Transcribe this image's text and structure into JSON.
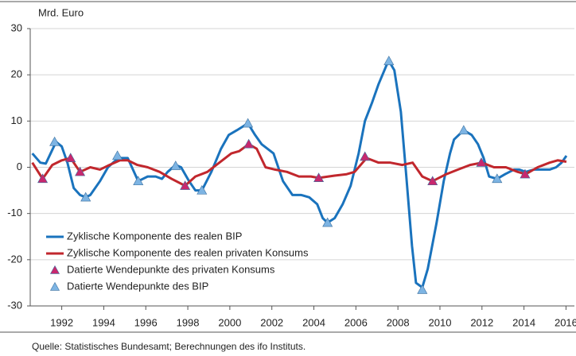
{
  "chart_data": {
    "type": "line",
    "y_axis_label": "Mrd. Euro",
    "source": "Quelle: Statistisches Bundesamt; Berechnungen des ifo Instituts.",
    "xlim": [
      1990.5,
      2016.4
    ],
    "xticks": [
      1992,
      1994,
      1996,
      1998,
      2000,
      2002,
      2004,
      2006,
      2008,
      2010,
      2012,
      2014,
      2016
    ],
    "ylim": [
      -30,
      30
    ],
    "yticks": [
      -30,
      -20,
      -10,
      0,
      10,
      20,
      30
    ],
    "grid": true,
    "legend": "lower left",
    "series": [
      {
        "name": "Zyklische Komponente des realen BIP",
        "mark": "line",
        "color": "#1a73bd",
        "x": [
          1990.6,
          1990.98,
          1991.24,
          1991.47,
          1991.73,
          1992.0,
          1992.27,
          1992.57,
          1992.87,
          1993.14,
          1993.36,
          1993.82,
          1994.2,
          1994.69,
          1995.14,
          1995.64,
          1996.09,
          1996.47,
          1996.77,
          1997.04,
          1997.42,
          1997.68,
          1998.06,
          1998.36,
          1998.67,
          1999.12,
          1999.58,
          1999.95,
          2000.33,
          2000.86,
          2001.2,
          2001.51,
          2002.08,
          2002.53,
          2002.98,
          2003.4,
          2003.78,
          2004.16,
          2004.42,
          2004.65,
          2004.99,
          2005.37,
          2005.75,
          2006.13,
          2006.43,
          2006.77,
          2007.08,
          2007.45,
          2007.57,
          2007.83,
          2008.14,
          2008.4,
          2008.67,
          2008.86,
          2009.16,
          2009.42,
          2009.84,
          2010.18,
          2010.48,
          2010.67,
          2011.13,
          2011.51,
          2011.81,
          2012.08,
          2012.34,
          2012.72,
          2013.1,
          2013.52,
          2013.78,
          2014.08,
          2014.46,
          2014.84,
          2015.22,
          2015.53,
          2015.79,
          2016.02
        ],
        "values": [
          3,
          1,
          0.8,
          3,
          5.5,
          4.5,
          1,
          -4.5,
          -6,
          -6.5,
          -6,
          -3,
          0,
          2,
          2,
          -3,
          -2,
          -2,
          -2.5,
          -1,
          0.5,
          0,
          -3,
          -5,
          -5,
          -1,
          4,
          7,
          8,
          9.5,
          7,
          5,
          3,
          -3,
          -6,
          -6,
          -6.5,
          -8,
          -11,
          -12,
          -11,
          -8,
          -4,
          3,
          10,
          14,
          18,
          22,
          23,
          21,
          12,
          -2,
          -17,
          -25,
          -26,
          -22,
          -12,
          -3,
          3,
          6,
          8,
          7,
          5,
          2,
          -2,
          -2.5,
          -1.5,
          -0.5,
          -0.5,
          -1,
          -0.5,
          -0.5,
          -0.5,
          0,
          1,
          2.5
        ]
      },
      {
        "name": "Zyklische Komponente des realen privaten Konsums",
        "mark": "line",
        "color": "#c1272d",
        "x": [
          1990.6,
          1991.09,
          1991.55,
          1992.0,
          1992.42,
          1992.87,
          1993.36,
          1993.82,
          1994.27,
          1994.77,
          1995.14,
          1995.6,
          1996.09,
          1996.66,
          1997.23,
          1997.87,
          1998.36,
          1998.93,
          1999.5,
          2000.07,
          2000.45,
          2000.9,
          2001.28,
          2001.7,
          2002.15,
          2002.72,
          2003.29,
          2003.86,
          2004.23,
          2004.99,
          2005.56,
          2005.94,
          2006.32,
          2006.51,
          2007.08,
          2007.64,
          2008.21,
          2008.7,
          2009.16,
          2009.65,
          2010.3,
          2010.86,
          2011.43,
          2012.0,
          2012.57,
          2013.14,
          2013.7,
          2014.08,
          2014.65,
          2015.22,
          2015.6,
          2016.02
        ],
        "values": [
          1,
          -2.5,
          0.5,
          1.5,
          2,
          -1,
          0,
          -0.5,
          0.5,
          1.5,
          1.5,
          0.5,
          0,
          -1,
          -2.5,
          -4,
          -2,
          -1,
          1,
          3,
          3.5,
          5,
          4,
          0,
          -0.5,
          -1,
          -2,
          -2,
          -2.3,
          -1.8,
          -1.5,
          -1,
          1,
          2,
          1,
          1,
          0.5,
          1,
          -2,
          -3,
          -1.5,
          -0.5,
          0.5,
          1,
          0,
          0,
          -1,
          -1.5,
          0,
          1,
          1.5,
          1.2
        ]
      },
      {
        "name": "Datierte Wendepunkte des privaten Konsums",
        "mark": "triangle",
        "color": "#c8286e",
        "x": [
          1991.09,
          1992.42,
          1992.87,
          1997.87,
          2000.9,
          2004.23,
          2006.43,
          2009.65,
          2011.97,
          2014.05
        ],
        "values": [
          -2.5,
          2,
          -1,
          -4,
          5,
          -2.3,
          2.3,
          -3,
          1,
          -1.5
        ]
      },
      {
        "name": "Datierte Wendepunkte des BIP",
        "mark": "triangle",
        "color": "#7db4e3",
        "x": [
          1991.66,
          1993.14,
          1994.65,
          1995.64,
          1997.42,
          1998.67,
          2000.86,
          2004.65,
          2007.57,
          2009.16,
          2011.13,
          2012.72
        ],
        "values": [
          5.5,
          -6.5,
          2.5,
          -3,
          0.3,
          -5,
          9.5,
          -12,
          23,
          -26.5,
          8,
          -2.5
        ]
      }
    ]
  }
}
